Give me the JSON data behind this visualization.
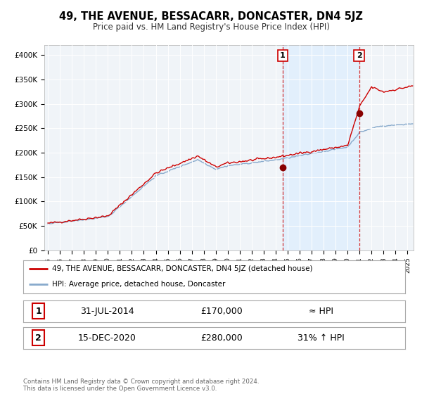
{
  "title": "49, THE AVENUE, BESSACARR, DONCASTER, DN4 5JZ",
  "subtitle": "Price paid vs. HM Land Registry's House Price Index (HPI)",
  "ylabel_ticks": [
    "£0",
    "£50K",
    "£100K",
    "£150K",
    "£200K",
    "£250K",
    "£300K",
    "£350K",
    "£400K"
  ],
  "ytick_values": [
    0,
    50000,
    100000,
    150000,
    200000,
    250000,
    300000,
    350000,
    400000
  ],
  "ylim": [
    0,
    420000
  ],
  "xlim_start": 1994.7,
  "xlim_end": 2025.5,
  "sale1_x": 2014.58,
  "sale1_y": 170000,
  "sale2_x": 2020.96,
  "sale2_y": 280000,
  "red_line_color": "#cc0000",
  "blue_line_color": "#88aacc",
  "vline_color": "#cc0000",
  "shade_color": "#ddeeff",
  "legend_label1": "49, THE AVENUE, BESSACARR, DONCASTER, DN4 5JZ (detached house)",
  "legend_label2": "HPI: Average price, detached house, Doncaster",
  "table_row1_date": "31-JUL-2014",
  "table_row1_price": "£170,000",
  "table_row1_hpi": "≈ HPI",
  "table_row2_date": "15-DEC-2020",
  "table_row2_price": "£280,000",
  "table_row2_hpi": "31% ↑ HPI",
  "footnote": "Contains HM Land Registry data © Crown copyright and database right 2024.\nThis data is licensed under the Open Government Licence v3.0.",
  "background_color": "#ffffff",
  "plot_bg_color": "#f0f4f8"
}
